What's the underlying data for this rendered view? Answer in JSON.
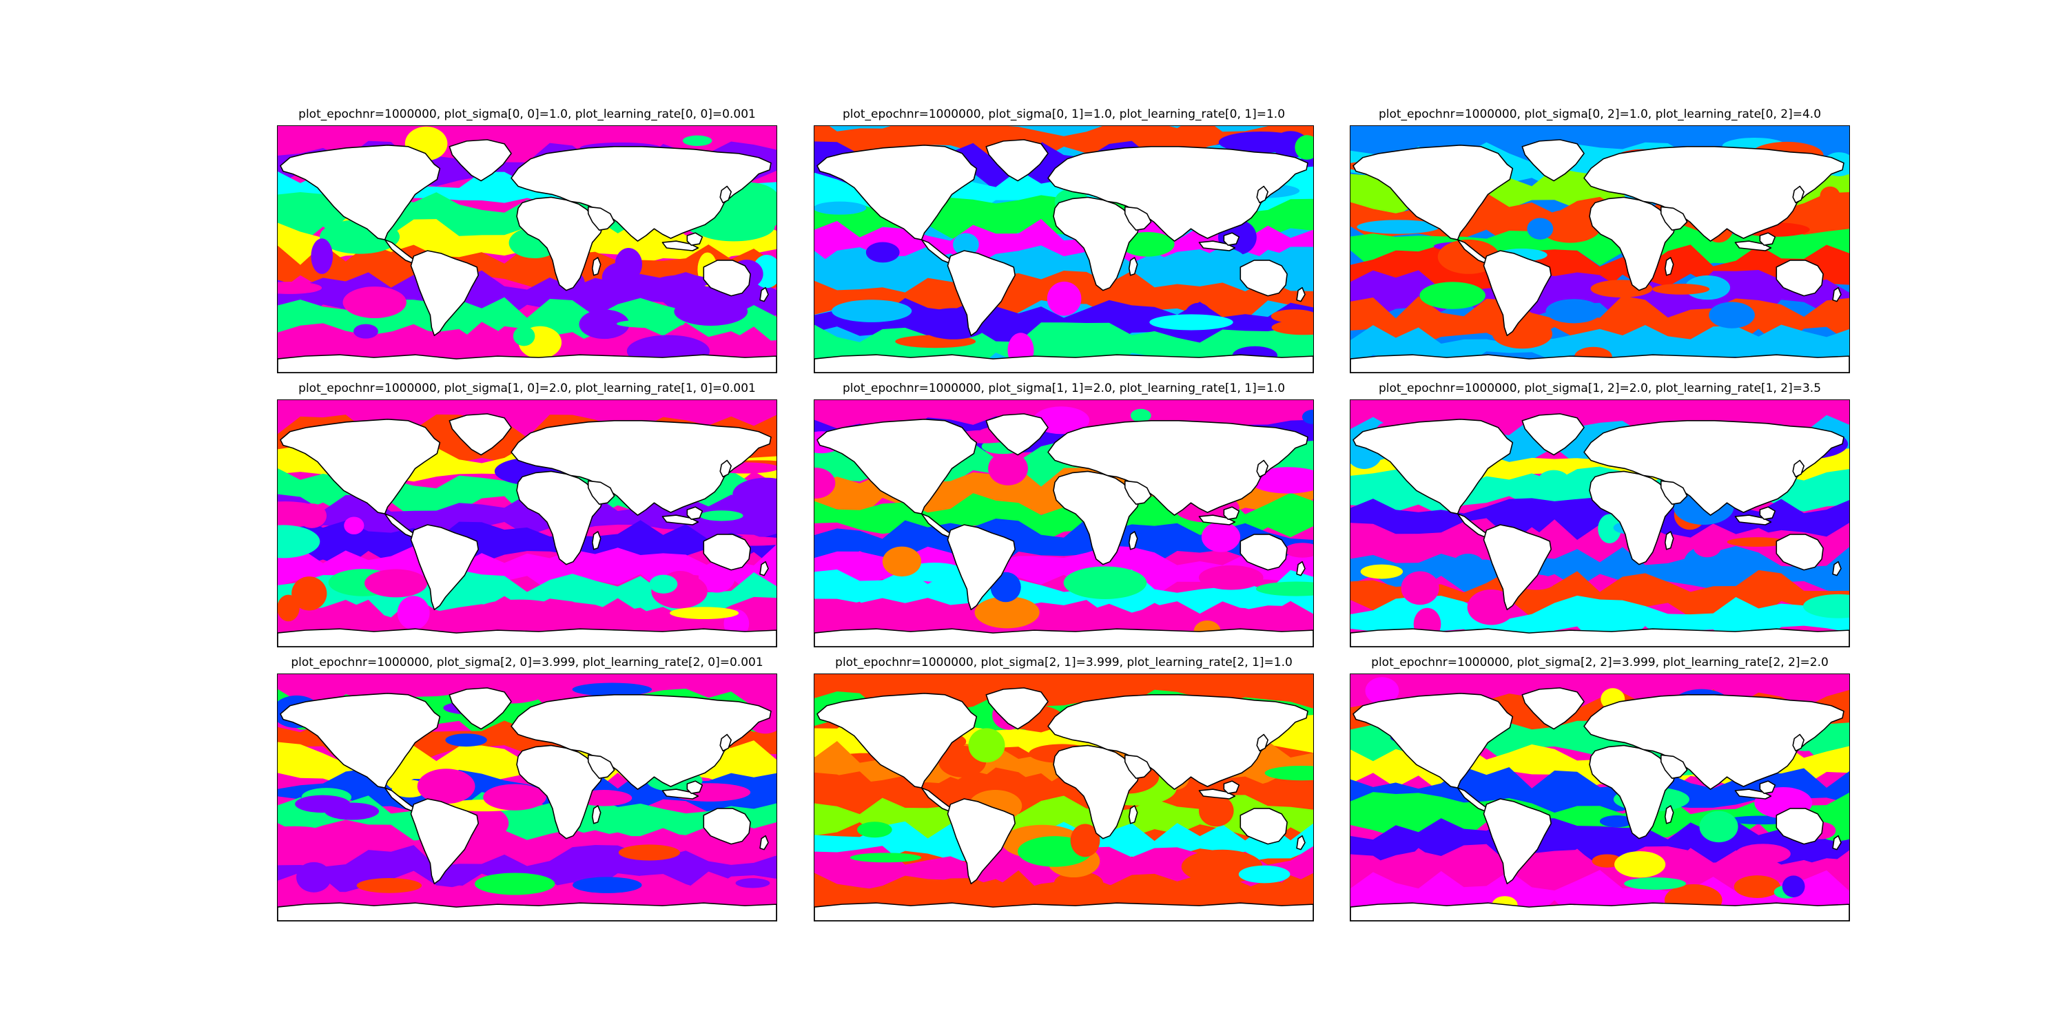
{
  "figure": {
    "panels": [
      {
        "title": "plot_epochnr=1000000, plot_sigma[0, 0]=1.0, plot_learning_rate[0, 0]=0.001",
        "base_color": "#ff00c0",
        "band_colors": [
          "#ff00c0",
          "#8000ff",
          "#00ffff",
          "#00ff80",
          "#ffff00",
          "#ff4000",
          "#8000ff",
          "#00ff80",
          "#ff00c0"
        ]
      },
      {
        "title": "plot_epochnr=1000000, plot_sigma[0, 1]=1.0, plot_learning_rate[0, 1]=1.0",
        "base_color": "#00c0ff",
        "band_colors": [
          "#ff4000",
          "#4000ff",
          "#00ffff",
          "#00ff40",
          "#ff00ff",
          "#00c0ff",
          "#ff4000",
          "#4000ff",
          "#00ff80"
        ]
      },
      {
        "title": "plot_epochnr=1000000, plot_sigma[0, 2]=1.0, plot_learning_rate[0, 2]=4.0",
        "base_color": "#0080ff",
        "band_colors": [
          "#0080ff",
          "#00e0ff",
          "#80ff00",
          "#ff4000",
          "#00ff40",
          "#ff2000",
          "#8000ff",
          "#ff4000",
          "#00c0ff"
        ]
      },
      {
        "title": "plot_epochnr=1000000, plot_sigma[1, 0]=2.0, plot_learning_rate[1, 0]=0.001",
        "base_color": "#ff00c0",
        "band_colors": [
          "#ff00c0",
          "#ff4000",
          "#ffff00",
          "#00ff80",
          "#8000ff",
          "#4000ff",
          "#ff00ff",
          "#00ffc0",
          "#ff00c0"
        ]
      },
      {
        "title": "plot_epochnr=1000000, plot_sigma[1, 1]=2.0, plot_learning_rate[1, 1]=1.0",
        "base_color": "#ff00c0",
        "band_colors": [
          "#ff00c0",
          "#4000ff",
          "#00ff80",
          "#ff8000",
          "#00ff40",
          "#0040ff",
          "#ff00ff",
          "#00ffff",
          "#ff00c0"
        ]
      },
      {
        "title": "plot_epochnr=1000000, plot_sigma[1, 2]=2.0, plot_learning_rate[1, 2]=3.5",
        "base_color": "#ff00c0",
        "band_colors": [
          "#ff00c0",
          "#00c0ff",
          "#ffff00",
          "#00ffc0",
          "#4000ff",
          "#ff00c0",
          "#0080ff",
          "#ff4000",
          "#00ffff"
        ]
      },
      {
        "title": "plot_epochnr=1000000, plot_sigma[2, 0]=3.999, plot_learning_rate[2, 0]=0.001",
        "base_color": "#ff00c0",
        "band_colors": [
          "#ff00c0",
          "#00ff40",
          "#ff4000",
          "#ffff00",
          "#0040ff",
          "#00ff80",
          "#ff00c0",
          "#8000ff",
          "#ff00c0"
        ]
      },
      {
        "title": "plot_epochnr=1000000, plot_sigma[2, 1]=3.999, plot_learning_rate[2, 1]=1.0",
        "base_color": "#ff4000",
        "band_colors": [
          "#ff4000",
          "#00ff40",
          "#ffff00",
          "#ff8000",
          "#ff4000",
          "#80ff00",
          "#00ffff",
          "#ff00c0",
          "#ff4000"
        ]
      },
      {
        "title": "plot_epochnr=1000000, plot_sigma[2, 2]=3.999, plot_learning_rate[2, 2]=2.0",
        "base_color": "#ff00c0",
        "band_colors": [
          "#ff00c0",
          "#ff4000",
          "#00ff80",
          "#ffff00",
          "#0040ff",
          "#00ff40",
          "#4000ff",
          "#ff00c0",
          "#ff00ff"
        ]
      }
    ]
  }
}
